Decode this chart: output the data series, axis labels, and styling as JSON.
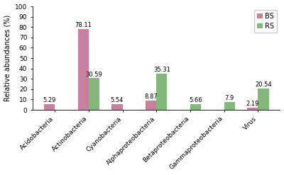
{
  "categories": [
    "Acidobacteria",
    "Actinobacteria",
    "Cyanobacteria",
    "Alphaproteobacteria",
    "Betaproteobacteria",
    "Gammaproteobacteria",
    "Virus"
  ],
  "BS_values": [
    5.29,
    78.11,
    5.54,
    8.87,
    0.0,
    0.0,
    2.19
  ],
  "RS_values": [
    0.0,
    30.59,
    0.0,
    35.31,
    5.66,
    7.9,
    20.54
  ],
  "BS_color": "#c97fa0",
  "RS_color": "#82b87a",
  "ylabel": "Relative abundances (%)",
  "ylim": [
    0,
    100
  ],
  "yticks": [
    0,
    10,
    20,
    30,
    40,
    50,
    60,
    70,
    80,
    90,
    100
  ],
  "bar_width": 0.32,
  "legend_labels": [
    "BS",
    "RS"
  ],
  "label_fontsize": 7,
  "tick_fontsize": 6.5,
  "annotation_fontsize": 6,
  "figsize": [
    4.0,
    2.47
  ],
  "dpi": 100
}
